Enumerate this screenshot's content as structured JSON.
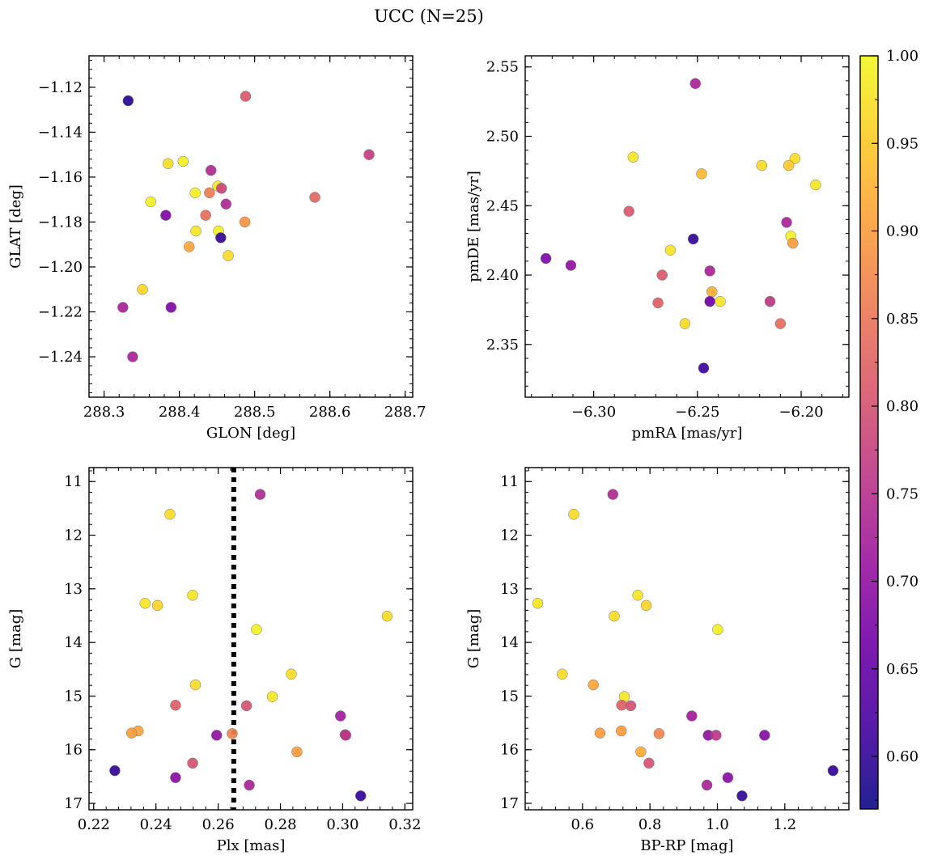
{
  "title": "UCC (N=25)",
  "colorbar": {
    "range": [
      0.57,
      1.0
    ],
    "ticks": [
      0.6,
      0.65,
      0.7,
      0.75,
      0.8,
      0.85,
      0.9,
      0.95,
      1.0
    ],
    "tick_labels": [
      "0.60",
      "0.65",
      "0.70",
      "0.75",
      "0.80",
      "0.85",
      "0.90",
      "0.95",
      "1.00"
    ],
    "colormap": "plasma",
    "colormap_stops": [
      "#0d0887",
      "#46039f",
      "#7201a8",
      "#9c179e",
      "#bd3786",
      "#d8576b",
      "#ed7953",
      "#fb9f3a",
      "#fdca26",
      "#f0f921"
    ]
  },
  "chart_data": [
    {
      "type": "scatter",
      "panel": "top-left",
      "xlabel": "GLON [deg]",
      "ylabel": "GLAT [deg]",
      "xlim": [
        288.28,
        288.71
      ],
      "ylim": [
        -1.258,
        -1.106
      ],
      "xticks": [
        288.3,
        288.4,
        288.5,
        288.6,
        288.7
      ],
      "xtick_labels": [
        "288.3",
        "288.4",
        "288.5",
        "288.6",
        "288.7"
      ],
      "yticks": [
        -1.12,
        -1.14,
        -1.16,
        -1.18,
        -1.2,
        -1.22,
        -1.24
      ],
      "ytick_labels": [
        "−1.12",
        "−1.14",
        "−1.16",
        "−1.18",
        "−1.20",
        "−1.22",
        "−1.24"
      ],
      "x": [
        288.332,
        288.488,
        288.652,
        288.405,
        288.385,
        288.442,
        288.451,
        288.456,
        288.421,
        288.362,
        288.44,
        288.462,
        288.435,
        288.382,
        288.58,
        288.487,
        288.422,
        288.452,
        288.455,
        288.413,
        288.465,
        288.351,
        288.325,
        288.389,
        288.338
      ],
      "y": [
        -1.126,
        -1.124,
        -1.15,
        -1.153,
        -1.154,
        -1.157,
        -1.164,
        -1.165,
        -1.167,
        -1.171,
        -1.167,
        -1.172,
        -1.177,
        -1.177,
        -1.169,
        -1.18,
        -1.184,
        -1.184,
        -1.187,
        -1.191,
        -1.195,
        -1.21,
        -1.218,
        -1.218,
        -1.24
      ],
      "c": [
        0.59,
        0.81,
        0.77,
        0.99,
        0.97,
        0.74,
        0.98,
        0.78,
        0.99,
        0.99,
        0.86,
        0.74,
        0.84,
        0.68,
        0.83,
        0.89,
        0.98,
        0.99,
        0.6,
        0.91,
        0.97,
        0.96,
        0.73,
        0.68,
        0.73
      ]
    },
    {
      "type": "scatter",
      "panel": "top-right",
      "xlabel": "pmRA [mas/yr]",
      "ylabel": "pmDE [mas/yr]",
      "xlim": [
        -6.333,
        -6.177
      ],
      "ylim": [
        2.312,
        2.558
      ],
      "xticks": [
        -6.3,
        -6.25,
        -6.2
      ],
      "xtick_labels": [
        "−6.30",
        "−6.25",
        "−6.20"
      ],
      "yticks": [
        2.35,
        2.4,
        2.45,
        2.5,
        2.55
      ],
      "ytick_labels": [
        "2.35",
        "2.40",
        "2.45",
        "2.50",
        "2.55"
      ],
      "x": [
        -6.251,
        -6.281,
        -6.248,
        -6.219,
        -6.203,
        -6.206,
        -6.193,
        -6.283,
        -6.207,
        -6.252,
        -6.263,
        -6.323,
        -6.311,
        -6.205,
        -6.204,
        -6.244,
        -6.267,
        -6.243,
        -6.244,
        -6.239,
        -6.269,
        -6.215,
        -6.21,
        -6.256,
        -6.247
      ],
      "y": [
        2.538,
        2.485,
        2.473,
        2.479,
        2.484,
        2.479,
        2.465,
        2.446,
        2.438,
        2.426,
        2.418,
        2.412,
        2.407,
        2.428,
        2.423,
        2.403,
        2.4,
        2.388,
        2.381,
        2.381,
        2.38,
        2.381,
        2.365,
        2.365,
        2.333
      ],
      "c": [
        0.73,
        0.98,
        0.93,
        0.97,
        0.97,
        0.95,
        0.98,
        0.81,
        0.73,
        0.6,
        0.98,
        0.68,
        0.7,
        0.99,
        0.9,
        0.73,
        0.81,
        0.92,
        0.66,
        0.98,
        0.82,
        0.76,
        0.84,
        0.97,
        0.61
      ]
    },
    {
      "type": "scatter",
      "panel": "bottom-left",
      "xlabel": "Plx [mas]",
      "ylabel": "G [mag]",
      "xlim": [
        0.2185,
        0.3225
      ],
      "ylim": [
        17.12,
        10.74
      ],
      "y_inverted": true,
      "vline": 0.265,
      "xticks": [
        0.22,
        0.24,
        0.26,
        0.28,
        0.3,
        0.32
      ],
      "xtick_labels": [
        "0.22",
        "0.24",
        "0.26",
        "0.28",
        "0.30",
        "0.32"
      ],
      "yticks": [
        11,
        12,
        13,
        14,
        15,
        16,
        17
      ],
      "ytick_labels": [
        "11",
        "12",
        "13",
        "14",
        "15",
        "16",
        "17"
      ],
      "x": [
        0.2735,
        0.2445,
        0.2365,
        0.2405,
        0.2518,
        0.3143,
        0.2723,
        0.2835,
        0.2527,
        0.2774,
        0.2463,
        0.2691,
        0.2993,
        0.3008,
        0.2343,
        0.2322,
        0.2645,
        0.2595,
        0.301,
        0.2853,
        0.2518,
        0.2268,
        0.2463,
        0.27,
        0.3058
      ],
      "y": [
        11.24,
        11.61,
        13.27,
        13.31,
        13.12,
        13.51,
        13.76,
        14.59,
        14.79,
        15.01,
        15.17,
        15.18,
        15.37,
        15.72,
        15.65,
        15.69,
        15.7,
        15.73,
        15.73,
        16.04,
        16.25,
        16.39,
        16.52,
        16.66,
        16.86
      ],
      "c": [
        0.74,
        0.97,
        0.98,
        0.96,
        0.98,
        0.97,
        0.99,
        0.97,
        0.97,
        0.98,
        0.82,
        0.8,
        0.72,
        0.75,
        0.91,
        0.9,
        0.87,
        0.7,
        0.76,
        0.9,
        0.8,
        0.6,
        0.69,
        0.73,
        0.6
      ]
    },
    {
      "type": "scatter",
      "panel": "bottom-right",
      "xlabel": "BP-RP [mag]",
      "ylabel": "G [mag]",
      "xlim": [
        0.43,
        1.39
      ],
      "ylim": [
        17.12,
        10.74
      ],
      "y_inverted": true,
      "xticks": [
        0.6,
        0.8,
        1.0,
        1.2
      ],
      "xtick_labels": [
        "0.6",
        "0.8",
        "1.0",
        "1.2"
      ],
      "yticks": [
        11,
        12,
        13,
        14,
        15,
        16,
        17
      ],
      "ytick_labels": [
        "11",
        "12",
        "13",
        "14",
        "15",
        "16",
        "17"
      ],
      "x": [
        0.69,
        0.574,
        0.467,
        0.764,
        0.789,
        0.694,
        1.001,
        0.54,
        0.632,
        0.724,
        0.716,
        0.743,
        0.924,
        0.652,
        0.715,
        0.827,
        0.973,
        0.996,
        1.14,
        0.773,
        0.797,
        1.343,
        1.031,
        0.969,
        1.073
      ],
      "y": [
        11.24,
        11.61,
        13.27,
        13.12,
        13.31,
        13.51,
        13.76,
        14.59,
        14.79,
        15.01,
        15.17,
        15.18,
        15.37,
        15.69,
        15.65,
        15.7,
        15.73,
        15.73,
        15.73,
        16.04,
        16.25,
        16.39,
        16.52,
        16.66,
        16.86
      ],
      "c": [
        0.74,
        0.97,
        0.98,
        0.98,
        0.96,
        0.97,
        0.99,
        0.97,
        0.91,
        0.98,
        0.82,
        0.8,
        0.72,
        0.9,
        0.9,
        0.87,
        0.7,
        0.76,
        0.69,
        0.92,
        0.8,
        0.6,
        0.69,
        0.73,
        0.6
      ]
    }
  ]
}
